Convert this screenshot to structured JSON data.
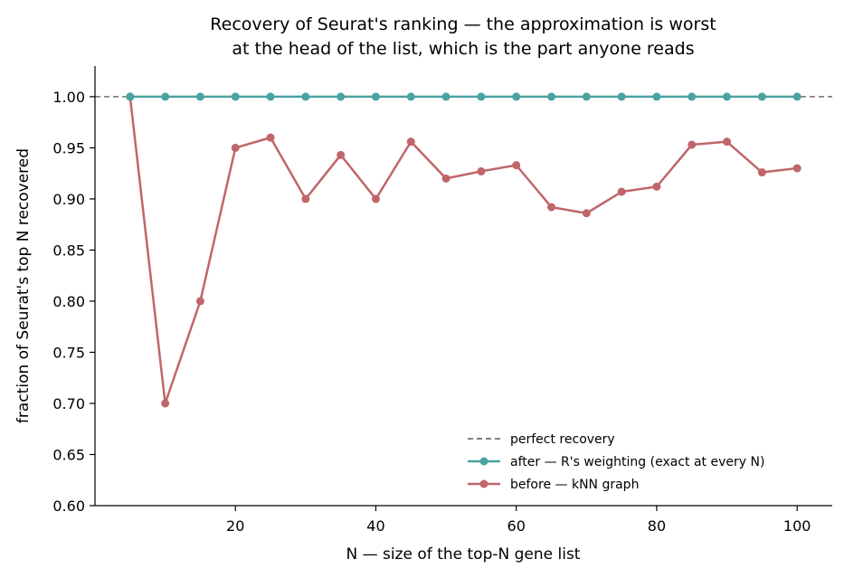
{
  "chart_data": {
    "type": "line",
    "title": [
      "Recovery of Seurat's ranking — the approximation is worst",
      "at the head of the list, which is the part anyone reads"
    ],
    "xlabel": "N — size of the top-N gene list",
    "ylabel": "fraction of Seurat's top N recovered",
    "xlim": [
      0,
      105
    ],
    "ylim": [
      0.6,
      1.03
    ],
    "xticks": [
      20,
      40,
      60,
      80,
      100
    ],
    "yticks": [
      0.6,
      0.65,
      0.7,
      0.75,
      0.8,
      0.85,
      0.9,
      0.95,
      1.0
    ],
    "ytick_labels": [
      "0.60",
      "0.65",
      "0.70",
      "0.75",
      "0.80",
      "0.85",
      "0.90",
      "0.95",
      "1.00"
    ],
    "grid": false,
    "legend_position": "lower-right",
    "reference_line": {
      "name": "perfect recovery",
      "y": 1.0,
      "color": "#555555",
      "style": "dashed"
    },
    "x": [
      5,
      10,
      15,
      20,
      25,
      30,
      35,
      40,
      45,
      50,
      55,
      60,
      65,
      70,
      75,
      80,
      85,
      90,
      95,
      100
    ],
    "series": [
      {
        "name": "after — R's weighting (exact at every N)",
        "color": "#4aa3a2",
        "values": [
          1,
          1,
          1,
          1,
          1,
          1,
          1,
          1,
          1,
          1,
          1,
          1,
          1,
          1,
          1,
          1,
          1,
          1,
          1,
          1
        ]
      },
      {
        "name": "before — kNN graph",
        "color": "#c0666a",
        "values": [
          1.0,
          0.7,
          0.8,
          0.95,
          0.96,
          0.9,
          0.943,
          0.9,
          0.956,
          0.92,
          0.927,
          0.933,
          0.892,
          0.886,
          0.907,
          0.912,
          0.953,
          0.956,
          0.926,
          0.93
        ]
      }
    ]
  }
}
